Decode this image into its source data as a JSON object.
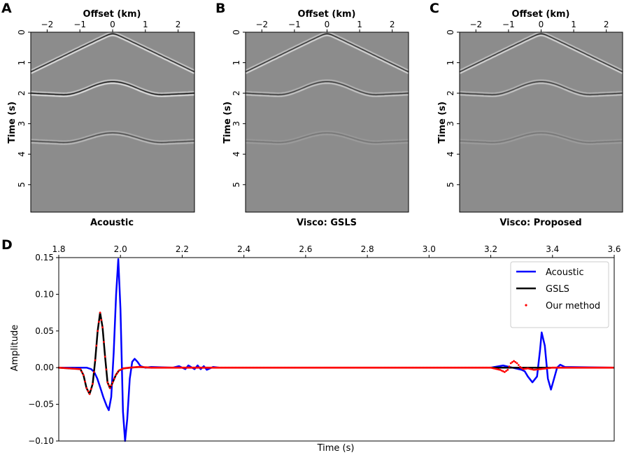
{
  "chart_data": [
    {
      "type": "heatmap",
      "panel": "A",
      "title": "Acoustic",
      "xlabel": "Offset (km)",
      "ylabel": "Time (s)",
      "xlim": [
        -2.5,
        2.5
      ],
      "ylim": [
        0,
        5.9
      ],
      "xticks": [
        -2,
        -1,
        0,
        1,
        2
      ],
      "yticks": [
        0,
        1,
        2,
        3,
        4,
        5
      ],
      "events": [
        {
          "name": "direct",
          "apex_time": 0.05,
          "edge_time": 1.3,
          "shape": "hyperbola",
          "amplitude": 1.0
        },
        {
          "name": "reflection-1",
          "apex_time": 1.62,
          "side_time": 2.05,
          "shape": "wavy",
          "amplitude": 1.0
        },
        {
          "name": "reflection-2",
          "apex_time": 3.3,
          "side_time": 3.62,
          "shape": "wavy",
          "amplitude": 0.55
        }
      ]
    },
    {
      "type": "heatmap",
      "panel": "B",
      "title": "Visco: GSLS",
      "xlabel": "Offset (km)",
      "ylabel": "Time (s)",
      "xlim": [
        -2.5,
        2.5
      ],
      "ylim": [
        0,
        5.9
      ],
      "xticks": [
        -2,
        -1,
        0,
        1,
        2
      ],
      "yticks": [
        0,
        1,
        2,
        3,
        4,
        5
      ],
      "events": [
        {
          "name": "direct",
          "apex_time": 0.05,
          "edge_time": 1.3,
          "shape": "hyperbola",
          "amplitude": 0.9
        },
        {
          "name": "reflection-1",
          "apex_time": 1.62,
          "side_time": 2.05,
          "shape": "wavy",
          "amplitude": 0.7
        },
        {
          "name": "reflection-2",
          "apex_time": 3.3,
          "side_time": 3.62,
          "shape": "wavy",
          "amplitude": 0.2
        }
      ]
    },
    {
      "type": "heatmap",
      "panel": "C",
      "title": "Visco: Proposed",
      "xlabel": "Offset (km)",
      "ylabel": "Time (s)",
      "xlim": [
        -2.5,
        2.5
      ],
      "ylim": [
        0,
        5.9
      ],
      "xticks": [
        -2,
        -1,
        0,
        1,
        2
      ],
      "yticks": [
        0,
        1,
        2,
        3,
        4,
        5
      ],
      "events": [
        {
          "name": "direct",
          "apex_time": 0.05,
          "edge_time": 1.3,
          "shape": "hyperbola",
          "amplitude": 0.9
        },
        {
          "name": "reflection-1",
          "apex_time": 1.62,
          "side_time": 2.05,
          "shape": "wavy",
          "amplitude": 0.7
        },
        {
          "name": "reflection-2",
          "apex_time": 3.3,
          "side_time": 3.62,
          "shape": "wavy",
          "amplitude": 0.2
        }
      ]
    },
    {
      "type": "line",
      "panel": "D",
      "xlabel": "Time (s)",
      "ylabel": "Amplitude",
      "xlim": [
        1.8,
        3.6
      ],
      "ylim": [
        -0.1,
        0.15
      ],
      "xticks": [
        1.8,
        2.0,
        2.2,
        2.4,
        2.6,
        2.8,
        3.0,
        3.2,
        3.4,
        3.6
      ],
      "xtick_labels": [
        "1.8",
        "2.0",
        "2.2",
        "2.4",
        "2.6",
        "2.8",
        "3.0",
        "3.2",
        "3.4",
        "3.6"
      ],
      "yticks": [
        -0.1,
        -0.05,
        0.0,
        0.05,
        0.1,
        0.15
      ],
      "ytick_labels": [
        "−0.10",
        "−0.05",
        "0.00",
        "0.05",
        "0.10",
        "0.15"
      ],
      "legend_position": "top-right",
      "series": [
        {
          "name": "Acoustic",
          "color": "#0000ff",
          "style": "line",
          "x": [
            1.8,
            1.89,
            1.905,
            1.915,
            1.925,
            1.935,
            1.945,
            1.955,
            1.962,
            1.97,
            1.978,
            1.986,
            1.993,
            2.0,
            2.008,
            2.015,
            2.022,
            2.03,
            2.038,
            2.046,
            2.055,
            2.065,
            2.08,
            2.1,
            2.17,
            2.19,
            2.2,
            2.21,
            2.22,
            2.24,
            2.25,
            2.26,
            2.27,
            2.28,
            2.3,
            2.32,
            2.5,
            2.8,
            3.0,
            3.2,
            3.24,
            3.27,
            3.3,
            3.31,
            3.32,
            3.335,
            3.35,
            3.36,
            3.365,
            3.375,
            3.385,
            3.395,
            3.405,
            3.415,
            3.425,
            3.44,
            3.6
          ],
          "y": [
            0.0,
            0.0,
            -0.002,
            -0.006,
            -0.015,
            -0.028,
            -0.041,
            -0.052,
            -0.058,
            -0.04,
            0.02,
            0.1,
            0.148,
            0.08,
            -0.06,
            -0.1,
            -0.07,
            -0.015,
            0.008,
            0.012,
            0.008,
            0.002,
            0.0,
            0.001,
            0.0,
            0.002,
            0.0,
            -0.002,
            0.003,
            -0.002,
            0.003,
            -0.002,
            0.002,
            -0.003,
            0.001,
            0.0,
            0.0,
            0.0,
            0.0,
            0.0,
            0.003,
            0.0,
            -0.003,
            -0.005,
            -0.012,
            -0.02,
            -0.012,
            0.025,
            0.048,
            0.03,
            -0.015,
            -0.03,
            -0.015,
            0.0,
            0.004,
            0.001,
            0.0
          ]
        },
        {
          "name": "GSLS",
          "color": "#000000",
          "style": "line",
          "x": [
            1.8,
            1.87,
            1.88,
            1.89,
            1.9,
            1.91,
            1.918,
            1.926,
            1.934,
            1.942,
            1.95,
            1.958,
            1.966,
            1.975,
            1.985,
            1.995,
            2.01,
            2.03,
            2.06,
            2.1,
            3.6
          ],
          "y": [
            0.0,
            -0.002,
            -0.01,
            -0.028,
            -0.036,
            -0.022,
            0.01,
            0.05,
            0.075,
            0.055,
            0.015,
            -0.02,
            -0.028,
            -0.02,
            -0.01,
            -0.004,
            -0.001,
            0.0,
            0.001,
            0.0,
            0.0
          ]
        },
        {
          "name": "Our method",
          "color": "#ff0000",
          "style": "dots",
          "x": [
            1.8,
            1.87,
            1.88,
            1.89,
            1.9,
            1.91,
            1.918,
            1.926,
            1.934,
            1.942,
            1.95,
            1.958,
            1.966,
            1.975,
            1.985,
            1.995,
            2.01,
            2.03,
            2.06,
            2.1,
            2.5,
            3.0,
            3.2,
            3.23,
            3.245,
            3.255,
            3.265,
            3.275,
            3.285,
            3.295,
            3.305,
            3.32,
            3.34,
            3.36,
            3.4,
            3.6
          ],
          "y": [
            0.0,
            -0.002,
            -0.01,
            -0.028,
            -0.036,
            -0.022,
            0.01,
            0.05,
            0.075,
            0.055,
            0.015,
            -0.02,
            -0.028,
            -0.02,
            -0.01,
            -0.004,
            -0.001,
            0.0,
            0.001,
            0.0,
            0.0,
            0.0,
            0.0,
            -0.003,
            -0.006,
            -0.003,
            0.006,
            0.009,
            0.006,
            0.001,
            -0.002,
            -0.001,
            -0.003,
            -0.002,
            0.0,
            0.0
          ]
        }
      ]
    }
  ]
}
